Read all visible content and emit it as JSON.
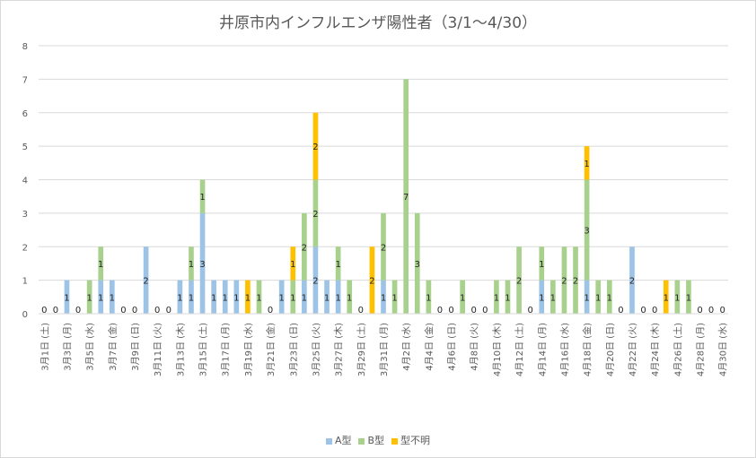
{
  "chart_data": {
    "type": "bar",
    "stacked": true,
    "title": "井原市内インフルエンザ陽性者（3/1～4/30）",
    "xlabel": "",
    "ylabel": "",
    "ylim": [
      0,
      8
    ],
    "y_ticks": [
      "0",
      "1",
      "2",
      "3",
      "4",
      "5",
      "6",
      "7",
      "8"
    ],
    "grid": true,
    "legend_position": "bottom",
    "categories": [
      "3/1",
      "3/2",
      "3/3",
      "3/4",
      "3/5",
      "3/6",
      "3/7",
      "3/8",
      "3/9",
      "3/10",
      "3/11",
      "3/12",
      "3/13",
      "3/14",
      "3/15",
      "3/16",
      "3/17",
      "3/18",
      "3/19",
      "3/20",
      "3/21",
      "3/22",
      "3/23",
      "3/24",
      "3/25",
      "3/26",
      "3/27",
      "3/28",
      "3/29",
      "3/30",
      "3/31",
      "4/1",
      "4/2",
      "4/3",
      "4/4",
      "4/5",
      "4/6",
      "4/7",
      "4/8",
      "4/9",
      "4/10",
      "4/11",
      "4/12",
      "4/13",
      "4/14",
      "4/15",
      "4/16",
      "4/17",
      "4/18",
      "4/19",
      "4/20",
      "4/21",
      "4/22",
      "4/23",
      "4/24",
      "4/25",
      "4/26",
      "4/27",
      "4/28",
      "4/29",
      "4/30"
    ],
    "x_tick_labels": [
      {
        "index": 0,
        "date": "3月1日",
        "dow": "(土)"
      },
      {
        "index": 2,
        "date": "3月3日",
        "dow": "(月)"
      },
      {
        "index": 4,
        "date": "3月5日",
        "dow": "(水)"
      },
      {
        "index": 6,
        "date": "3月7日",
        "dow": "(金)"
      },
      {
        "index": 8,
        "date": "3月9日",
        "dow": "(日)"
      },
      {
        "index": 10,
        "date": "3月11日",
        "dow": "(火)"
      },
      {
        "index": 12,
        "date": "3月13日",
        "dow": "(木)"
      },
      {
        "index": 14,
        "date": "3月15日",
        "dow": "(土)"
      },
      {
        "index": 16,
        "date": "3月17日",
        "dow": "(月)"
      },
      {
        "index": 18,
        "date": "3月19日",
        "dow": "(水)"
      },
      {
        "index": 20,
        "date": "3月21日",
        "dow": "(金)"
      },
      {
        "index": 22,
        "date": "3月23日",
        "dow": "(日)"
      },
      {
        "index": 24,
        "date": "3月25日",
        "dow": "(火)"
      },
      {
        "index": 26,
        "date": "3月27日",
        "dow": "(木)"
      },
      {
        "index": 28,
        "date": "3月29日",
        "dow": "(土)"
      },
      {
        "index": 30,
        "date": "3月31日",
        "dow": "(月)"
      },
      {
        "index": 32,
        "date": "4月2日",
        "dow": "(水)"
      },
      {
        "index": 34,
        "date": "4月4日",
        "dow": "(金)"
      },
      {
        "index": 36,
        "date": "4月6日",
        "dow": "(日)"
      },
      {
        "index": 38,
        "date": "4月8日",
        "dow": "(火)"
      },
      {
        "index": 40,
        "date": "4月10日",
        "dow": "(木)"
      },
      {
        "index": 42,
        "date": "4月12日",
        "dow": "(土)"
      },
      {
        "index": 44,
        "date": "4月14日",
        "dow": "(月)"
      },
      {
        "index": 46,
        "date": "4月16日",
        "dow": "(水)"
      },
      {
        "index": 48,
        "date": "4月18日",
        "dow": "(金)"
      },
      {
        "index": 50,
        "date": "4月20日",
        "dow": "(日)"
      },
      {
        "index": 52,
        "date": "4月22日",
        "dow": "(火)"
      },
      {
        "index": 54,
        "date": "4月24日",
        "dow": "(木)"
      },
      {
        "index": 56,
        "date": "4月26日",
        "dow": "(土)"
      },
      {
        "index": 58,
        "date": "4月28日",
        "dow": "(月)"
      },
      {
        "index": 60,
        "date": "4月30日",
        "dow": "(水)"
      }
    ],
    "series": [
      {
        "name": "A型",
        "color": "#9dc3e6",
        "values": [
          0,
          0,
          1,
          0,
          0,
          1,
          1,
          0,
          0,
          2,
          0,
          0,
          1,
          1,
          3,
          1,
          1,
          1,
          0,
          0,
          0,
          1,
          0,
          1,
          2,
          1,
          1,
          0,
          0,
          0,
          1,
          0,
          0,
          0,
          0,
          0,
          0,
          0,
          0,
          0,
          0,
          0,
          0,
          0,
          1,
          0,
          0,
          0,
          1,
          0,
          0,
          0,
          2,
          0,
          0,
          0,
          0,
          0,
          0,
          0,
          0
        ]
      },
      {
        "name": "B型",
        "color": "#a9d18e",
        "values": [
          0,
          0,
          0,
          0,
          1,
          1,
          0,
          0,
          0,
          0,
          0,
          0,
          0,
          1,
          1,
          0,
          0,
          0,
          0,
          1,
          0,
          0,
          1,
          2,
          2,
          0,
          1,
          1,
          0,
          0,
          2,
          1,
          7,
          3,
          1,
          0,
          0,
          1,
          0,
          0,
          1,
          1,
          2,
          0,
          1,
          1,
          2,
          2,
          3,
          1,
          1,
          0,
          0,
          0,
          0,
          0,
          1,
          1,
          0,
          0,
          0
        ]
      },
      {
        "name": "型不明",
        "color": "#ffc000",
        "values": [
          0,
          0,
          0,
          0,
          0,
          0,
          0,
          0,
          0,
          0,
          0,
          0,
          0,
          0,
          0,
          0,
          0,
          0,
          1,
          0,
          0,
          0,
          1,
          0,
          2,
          0,
          0,
          0,
          0,
          2,
          0,
          0,
          0,
          0,
          0,
          0,
          0,
          0,
          0,
          0,
          0,
          0,
          0,
          0,
          0,
          0,
          0,
          0,
          1,
          0,
          0,
          0,
          0,
          0,
          0,
          1,
          0,
          0,
          0,
          0,
          0
        ]
      }
    ]
  }
}
